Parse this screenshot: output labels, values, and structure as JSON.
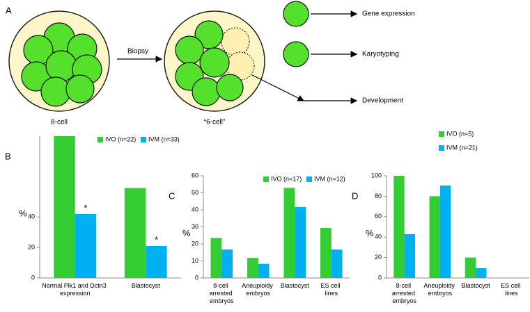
{
  "diagram": {
    "panel": "A",
    "biopsy": "Biopsy",
    "left_caption": "8-cell",
    "right_caption": "“6-cell”",
    "outputs": [
      "Gene expression",
      "Karyotyping",
      "Development"
    ]
  },
  "chart_data": [
    {
      "type": "bar",
      "label": "B",
      "ylabel": "%",
      "categories": [
        "Normal Plk1 and Dctn3 expression",
        "Blastocyst"
      ],
      "series": [
        {
          "name": "IVO (n=22)",
          "color": "#33cc33",
          "values": [
            93,
            59
          ]
        },
        {
          "name": "IVM (n=33)",
          "color": "#00b0f0",
          "values": [
            42,
            21
          ]
        }
      ],
      "annotations": [
        "*",
        "*"
      ],
      "ylim": [
        0,
        93
      ],
      "yticks": [
        0,
        20,
        40
      ]
    },
    {
      "type": "bar",
      "label": "C",
      "ylabel": "%",
      "categories": [
        "8-cell arrested embryos",
        "Aneuploidy embryos",
        "Blastocyst",
        "ES cell lines"
      ],
      "series": [
        {
          "name": "IVO (n=17)",
          "color": "#33cc33",
          "values": [
            23.5,
            11.8,
            52.9,
            29.4
          ]
        },
        {
          "name": "IVM (n=12)",
          "color": "#00b0f0",
          "values": [
            16.7,
            8.3,
            41.7,
            16.7
          ]
        }
      ],
      "ylim": [
        0,
        60
      ],
      "yticks": [
        0,
        10,
        20,
        30,
        40,
        50,
        60
      ]
    },
    {
      "type": "bar",
      "label": "D",
      "ylabel": "%",
      "categories": [
        "8-cell arrested embryos",
        "Aneuploidy embryos",
        "Blastocyst",
        "ES cell lines"
      ],
      "series": [
        {
          "name": "IVO (n=5)",
          "color": "#33cc33",
          "values": [
            100,
            80,
            20,
            0
          ]
        },
        {
          "name": "IVM (n=21)",
          "color": "#00b0f0",
          "values": [
            42.9,
            90.5,
            9.5,
            0
          ]
        }
      ],
      "ylim": [
        0,
        100
      ],
      "yticks": [
        0,
        20,
        40,
        60,
        80,
        100
      ]
    }
  ]
}
